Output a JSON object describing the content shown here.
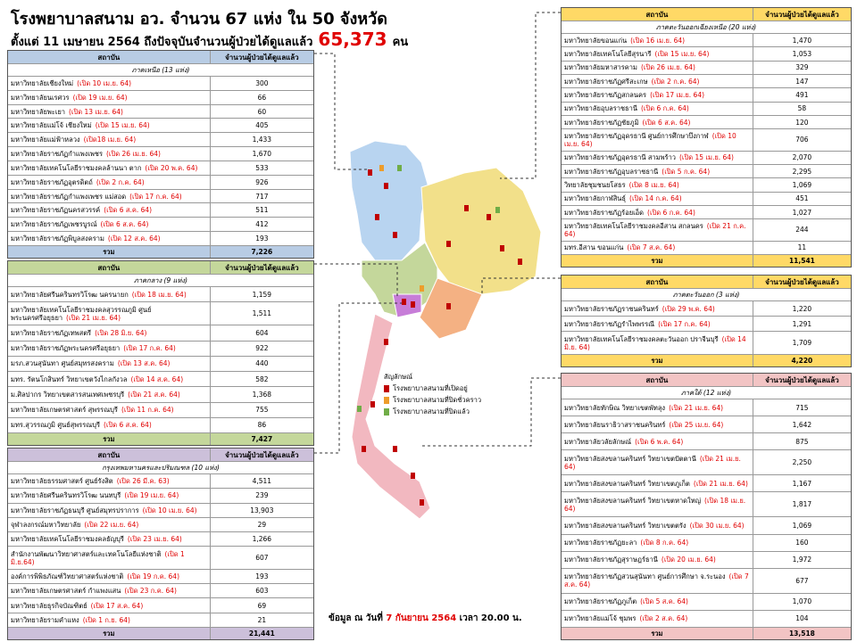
{
  "header": {
    "title": "โรงพยาบาลสนาม อว.  จำนวน 67 แห่ง ใน 50 จังหวัด",
    "subtitle": "ตั้งแต่  11 เมษายน 2564  ถึงปัจจุบันจำนวนผู้ป่วยได้ดูแลแล้ว",
    "total_patients": "65,373",
    "unit": "คน"
  },
  "tables": [
    {
      "columns": [
        "สถาบัน",
        "จำนวนผู้ป่วยได้ดูแลแล้ว"
      ],
      "region": "ภาคเหนือ (13 แห่ง)",
      "rows": [
        [
          "มหาวิทยาลัยเชียงใหม่",
          "(เปิด 10 เม.ย. 64)",
          "300"
        ],
        [
          "มหาวิทยาลัยนเรศวร",
          "(เปิด 19 เม.ย. 64)",
          "66"
        ],
        [
          "มหาวิทยาลัยพะเยา",
          "(เปิด 13 เม.ย. 64)",
          "60"
        ],
        [
          "มหาวิทยาลัยแม่โจ้  เชียงใหม่",
          "(เปิด 15 เม.ย. 64)",
          "405"
        ],
        [
          "มหาวิทยาลัยแม่ฟ้าหลวง",
          "(เปิด18 เม.ย. 64)",
          "1,433"
        ],
        [
          "มหาวิทยาลัยราชภัฏกำแพงเพชร",
          "(เปิด 26 เม.ย. 64)",
          "1,670"
        ],
        [
          "มหาวิทยาลัยเทคโนโลยีราชมงคลล้านนา  ตาก",
          "(เปิด 20 พ.ค. 64)",
          "533"
        ],
        [
          "มหาวิทยาลัยราชภัฏอุตรดิตถ์",
          "(เปิด 2 ก.ค. 64)",
          "926"
        ],
        [
          "มหาวิทยาลัยราชภัฏกำแพงเพชร  แม่สอด",
          "(เปิด 17 ก.ค. 64)",
          "717"
        ],
        [
          "มหาวิทยาลัยราชภัฏนครสวรรค์",
          "(เปิด 6 ส.ค. 64)",
          "511"
        ],
        [
          "มหาวิทยาลัยราชภัฏเพชรบูรณ์",
          "(เปิด 6 ส.ค. 64)",
          "412"
        ],
        [
          "มหาวิทยาลัยราชภัฏพิบูลสงคราม",
          "(เปิด 12 ส.ค. 64)",
          "193"
        ]
      ],
      "total_label": "รวม",
      "total": "7,226"
    },
    {
      "columns": [
        "สถาบัน",
        "จำนวนผู้ป่วยได้ดูแลแล้ว"
      ],
      "region": "ภาคกลาง (9 แห่ง)",
      "rows": [
        [
          "มหาวิทยาลัยศรีนครินทรวิโรฒ นครนายก",
          "(เปิด 18 เม.ย. 64)",
          "1,159"
        ],
        [
          "มหาวิทยาลัยเทคโนโลยีราชมงคลสุวรรณภูมิ ศูนย์พระนครศรีอยุธยา",
          "(เปิด 21 เม.ย. 64)",
          "1,511"
        ],
        [
          "มหาวิทยาลัยราชภัฏเทพสตรี",
          "(เปิด 28 มิ.ย. 64)",
          "604"
        ],
        [
          "มหาวิทยาลัยราชภัฏพระนครศรีอยุธยา",
          "(เปิด 17 ก.ค. 64)",
          "922"
        ],
        [
          "มรภ.สวนสุนันทา ศูนย์สมุทรสงคราม",
          "(เปิด 13 ส.ค. 64)",
          "440"
        ],
        [
          "มทร. รัตนโกสินทร์  วิทยาเขตวังไกลกังวล",
          "(เปิด 14 ส.ค. 64)",
          "582"
        ],
        [
          "ม.ศิลปากร วิทยาเขตสารสนเทศเพชรบุรี",
          "(เปิด 21 ส.ค. 64)",
          "1,368"
        ],
        [
          "มหาวิทยาลัยเกษตรศาสตร์  สุพรรณบุรี",
          "(เปิด 11 ก.ค. 64)",
          "755"
        ],
        [
          "มทร.สุวรรณภูมิ ศูนย์สุพรรณบุรี",
          "(เปิด 6 ส.ค. 64)",
          "86"
        ]
      ],
      "total_label": "รวม",
      "total": "7,427"
    },
    {
      "columns": [
        "สถาบัน",
        "จำนวนผู้ป่วยได้ดูแลแล้ว"
      ],
      "region": "กรุงเทพมหานครและปริมณฑล (10 แห่ง)",
      "rows": [
        [
          "มหาวิทยาลัยธรรมศาสตร์ ศูนย์รังสิต",
          "(เปิด 26 มี.ค. 63)",
          "4,511"
        ],
        [
          "มหาวิทยาลัยศรีนครินทรวิโรฒ นนทบุรี",
          "(เปิด 19 เม.ย. 64)",
          "239"
        ],
        [
          "มหาวิทยาลัยราชภัฏธนบุรี ศูนย์สมุทรปราการ",
          "(เปิด 10 เม.ย. 64)",
          "13,903"
        ],
        [
          "จุฬาลงกรณ์มหาวิทยาลัย",
          "(เปิด 22 เม.ย. 64)",
          "29"
        ],
        [
          "มหาวิทยาลัยเทคโนโลยีราชมงคลธัญบุรี",
          "(เปิด 23 เม.ย. 64)",
          "1,266"
        ],
        [
          "สำนักงานพัฒนาวิทยาศาสตร์และเทคโนโลยีแห่งชาติ",
          "(เปิด 1 มิ.ย.64)",
          "607"
        ],
        [
          "องค์การพิพิธภัณฑ์วิทยาศาสตร์แห่งชาติ",
          "(เปิด 19 ก.ค. 64)",
          "193"
        ],
        [
          "มหาวิทยาลัยเกษตรศาสตร์  กำแพงแสน",
          "(เปิด 23 ก.ค. 64)",
          "603"
        ],
        [
          "มหาวิทยาลัยธุรกิจบัณฑิตย์",
          "(เปิด 17 ส.ค. 64)",
          "69"
        ],
        [
          "มหาวิทยาลัยรามคำแหง",
          "(เปิด 1 ก.ย. 64)",
          "21"
        ]
      ],
      "total_label": "รวม",
      "total": "21,441"
    },
    {
      "columns": [
        "สถาบัน",
        "จำนวนผู้ป่วยได้ดูแลแล้ว"
      ],
      "region": "ภาคตะวันออกเฉียงเหนือ (20 แห่ง)",
      "rows": [
        [
          "มหาวิทยาลัยขอนแก่น",
          "(เปิด 16 เม.ย. 64)",
          "1,470"
        ],
        [
          "มหาวิทยาลัยเทคโนโลยีสุรนารี",
          "(เปิด 15 เม.ย. 64)",
          "1,053"
        ],
        [
          "มหาวิทยาลัยมหาสารคาม",
          "(เปิด 26 เม.ย. 64)",
          "329"
        ],
        [
          "มหาวิทยาลัยราชภัฏศรีสะเกษ",
          "(เปิด 2 ก.ค. 64)",
          "147"
        ],
        [
          "มหาวิทยาลัยราชภัฏสกลนคร",
          "(เปิด 17 เม.ย. 64)",
          "491"
        ],
        [
          "มหาวิทยาลัยอุบลราชธานี",
          "(เปิด 6 ก.ค. 64)",
          "58"
        ],
        [
          "มหาวิทยาลัยราชภัฏชัยภูมิ",
          "(เปิด 6 ส.ค. 64)",
          "120"
        ],
        [
          "มหาวิทยาลัยราชภัฏอุดรธานี ศูนย์การศึกษาบึงกาฬ",
          "(เปิด 10 เม.ย. 64)",
          "706"
        ],
        [
          "มหาวิทยาลัยราชภัฏอุดรธานี สามพร้าว",
          "(เปิด 15 เม.ย. 64)",
          "2,070"
        ],
        [
          "มหาวิทยาลัยราชภัฏอุบลราชธานี",
          "(เปิด 5 ก.ค. 64)",
          "2,295"
        ],
        [
          "วิทยาลัยชุมชนยโสธร",
          "(เปิด 8 เม.ย. 64)",
          "1,069"
        ],
        [
          "มหาวิทยาลัยกาฬสินธุ์",
          "(เปิด 14 ก.ค. 64)",
          "451"
        ],
        [
          "มหาวิทยาลัยราชภัฏร้อยเอ็ด",
          "(เปิด 6 ก.ค. 64)",
          "1,027"
        ],
        [
          "มหาวิทยาลัยเทคโนโลยีราชมงคลอีสาน สกลนคร",
          "(เปิด 21 ก.ค. 64)",
          "244"
        ],
        [
          "มทร.อีสาน ขอนแก่น",
          "(เปิด 7 ส.ค. 64)",
          "11"
        ]
      ],
      "total_label": "รวม",
      "total": "11,541"
    },
    {
      "columns": [
        "สถาบัน",
        "จำนวนผู้ป่วยได้ดูแลแล้ว"
      ],
      "region": "ภาคตะวันออก (3 แห่ง)",
      "rows": [
        [
          "มหาวิทยาลัยราชภัฏราชนครินทร์",
          "(เปิด 29 พ.ค. 64)",
          "1,220"
        ],
        [
          "มหาวิทยาลัยราชภัฏรำไพพรรณี",
          "(เปิด 17 ก.ค. 64)",
          "1,291"
        ],
        [
          "มหาวิทยาลัยเทคโนโลยีราชมงคลตะวันออก ปราจีนบุรี",
          "(เปิด 14 มิ.ย. 64)",
          "1,709"
        ]
      ],
      "total_label": "รวม",
      "total": "4,220"
    },
    {
      "columns": [
        "สถาบัน",
        "จำนวนผู้ป่วยได้ดูแลแล้ว"
      ],
      "region": "ภาคใต้ (12 แห่ง)",
      "rows": [
        [
          "มหาวิทยาลัยทักษิณ วิทยาเขตพัทลุง",
          "(เปิด 21 เม.ย. 64)",
          "715"
        ],
        [
          "มหาวิทยาลัยนราธิวาสราชนครินทร์",
          "(เปิด 25 เม.ย. 64)",
          "1,642"
        ],
        [
          "มหาวิทยาลัยวลัยลักษณ์",
          "(เปิด 6 พ.ค. 64)",
          "875"
        ],
        [
          "มหาวิทยาลัยสงขลานครินทร์ วิทยาเขตปัตตานี",
          "(เปิด 21 เม.ย. 64)",
          "2,250"
        ],
        [
          "มหาวิทยาลัยสงขลานครินทร์ วิทยาเขตภูเก็ต",
          "(เปิด 21 เม.ย. 64)",
          "1,167"
        ],
        [
          "มหาวิทยาลัยสงขลานครินทร์ วิทยาเขตหาดใหญ่",
          "(เปิด 18 เม.ย. 64)",
          "1,817"
        ],
        [
          "มหาวิทยาลัยสงขลานครินทร์ วิทยาเขตตรัง",
          "(เปิด 30 เม.ย. 64)",
          "1,069"
        ],
        [
          "มหาวิทยาลัยราชภัฏยะลา",
          "(เปิด 8 ก.ค. 64)",
          "160"
        ],
        [
          "มหาวิทยาลัยราชภัฏสุราษฎร์ธานี",
          "(เปิด 20 เม.ย. 64)",
          "1,972"
        ],
        [
          "มหาวิทยาลัยราชภัฏสวนสุนันทา ศูนย์การศึกษา จ.ระนอง",
          "(เปิด 7 ส.ค. 64)",
          "677"
        ],
        [
          "มหาวิทยาลัยราชภัฏภูเก็ต",
          "(เปิด 5 ส.ค. 64)",
          "1,070"
        ],
        [
          "มหาวิทยาลัยแม่โจ้  ชุมพร",
          "(เปิด 2 ส.ค. 64)",
          "104"
        ]
      ],
      "total_label": "รวม",
      "total": "13,518"
    }
  ],
  "legend": {
    "title": "สัญลักษณ์",
    "items": [
      "โรงพยาบาลสนามที่เปิดอยู่",
      "โรงพยาบาลสนามที่ปิดชั่วคราว",
      "โรงพยาบาลสนามที่ปิดแล้ว"
    ]
  },
  "footer": {
    "prefix": "ข้อมูล ณ วันที่",
    "date": "7 กันยายน 2564",
    "suffix": "เวลา 20.00 น."
  }
}
